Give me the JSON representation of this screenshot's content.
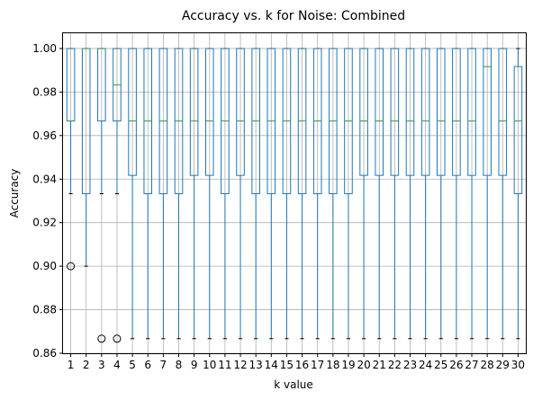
{
  "chart_data": {
    "type": "boxplot",
    "title": "Accuracy vs. k for Noise: Combined",
    "xlabel": "k value",
    "ylabel": "Accuracy",
    "ylim": [
      0.86,
      1.007
    ],
    "yticks": [
      0.86,
      0.88,
      0.9,
      0.92,
      0.94,
      0.96,
      0.98,
      1.0
    ],
    "ytick_labels": [
      "0.86",
      "0.88",
      "0.90",
      "0.92",
      "0.94",
      "0.96",
      "0.98",
      "1.00"
    ],
    "grid": true,
    "colors": {
      "box": "#1f77b4",
      "median": "#2ca02c",
      "whisker": "#1f77b4",
      "cap": "#000000",
      "flier": "#000000",
      "grid": "#b0b0b0"
    },
    "boxes": [
      {
        "k": "1",
        "lower_whisker": 0.9333,
        "q1": 0.9667,
        "median": 0.9667,
        "q3": 1.0,
        "upper_whisker": 1.0,
        "fliers": [
          0.9
        ]
      },
      {
        "k": "2",
        "lower_whisker": 0.9,
        "q1": 0.9333,
        "median": 1.0,
        "q3": 1.0,
        "upper_whisker": 1.0,
        "fliers": []
      },
      {
        "k": "3",
        "lower_whisker": 0.9333,
        "q1": 0.9667,
        "median": 1.0,
        "q3": 1.0,
        "upper_whisker": 1.0,
        "fliers": [
          0.8667
        ]
      },
      {
        "k": "4",
        "lower_whisker": 0.9333,
        "q1": 0.9667,
        "median": 0.9833,
        "q3": 1.0,
        "upper_whisker": 1.0,
        "fliers": [
          0.8667
        ]
      },
      {
        "k": "5",
        "lower_whisker": 0.8667,
        "q1": 0.9417,
        "median": 0.9667,
        "q3": 1.0,
        "upper_whisker": 1.0,
        "fliers": []
      },
      {
        "k": "6",
        "lower_whisker": 0.8667,
        "q1": 0.9333,
        "median": 0.9667,
        "q3": 1.0,
        "upper_whisker": 1.0,
        "fliers": []
      },
      {
        "k": "7",
        "lower_whisker": 0.8667,
        "q1": 0.9333,
        "median": 0.9667,
        "q3": 1.0,
        "upper_whisker": 1.0,
        "fliers": []
      },
      {
        "k": "8",
        "lower_whisker": 0.8667,
        "q1": 0.9333,
        "median": 0.9667,
        "q3": 1.0,
        "upper_whisker": 1.0,
        "fliers": []
      },
      {
        "k": "9",
        "lower_whisker": 0.8667,
        "q1": 0.9417,
        "median": 0.9667,
        "q3": 1.0,
        "upper_whisker": 1.0,
        "fliers": []
      },
      {
        "k": "10",
        "lower_whisker": 0.8667,
        "q1": 0.9417,
        "median": 0.9667,
        "q3": 1.0,
        "upper_whisker": 1.0,
        "fliers": []
      },
      {
        "k": "11",
        "lower_whisker": 0.8667,
        "q1": 0.9333,
        "median": 0.9667,
        "q3": 1.0,
        "upper_whisker": 1.0,
        "fliers": []
      },
      {
        "k": "12",
        "lower_whisker": 0.8667,
        "q1": 0.9417,
        "median": 0.9667,
        "q3": 1.0,
        "upper_whisker": 1.0,
        "fliers": []
      },
      {
        "k": "13",
        "lower_whisker": 0.8667,
        "q1": 0.9333,
        "median": 0.9667,
        "q3": 1.0,
        "upper_whisker": 1.0,
        "fliers": []
      },
      {
        "k": "14",
        "lower_whisker": 0.8667,
        "q1": 0.9333,
        "median": 0.9667,
        "q3": 1.0,
        "upper_whisker": 1.0,
        "fliers": []
      },
      {
        "k": "15",
        "lower_whisker": 0.8667,
        "q1": 0.9333,
        "median": 0.9667,
        "q3": 1.0,
        "upper_whisker": 1.0,
        "fliers": []
      },
      {
        "k": "16",
        "lower_whisker": 0.8667,
        "q1": 0.9333,
        "median": 0.9667,
        "q3": 1.0,
        "upper_whisker": 1.0,
        "fliers": []
      },
      {
        "k": "17",
        "lower_whisker": 0.8667,
        "q1": 0.9333,
        "median": 0.9667,
        "q3": 1.0,
        "upper_whisker": 1.0,
        "fliers": []
      },
      {
        "k": "18",
        "lower_whisker": 0.8667,
        "q1": 0.9333,
        "median": 0.9667,
        "q3": 1.0,
        "upper_whisker": 1.0,
        "fliers": []
      },
      {
        "k": "19",
        "lower_whisker": 0.8667,
        "q1": 0.9333,
        "median": 0.9667,
        "q3": 1.0,
        "upper_whisker": 1.0,
        "fliers": []
      },
      {
        "k": "20",
        "lower_whisker": 0.8667,
        "q1": 0.9417,
        "median": 0.9667,
        "q3": 1.0,
        "upper_whisker": 1.0,
        "fliers": []
      },
      {
        "k": "21",
        "lower_whisker": 0.8667,
        "q1": 0.9417,
        "median": 0.9667,
        "q3": 1.0,
        "upper_whisker": 1.0,
        "fliers": []
      },
      {
        "k": "22",
        "lower_whisker": 0.8667,
        "q1": 0.9417,
        "median": 0.9667,
        "q3": 1.0,
        "upper_whisker": 1.0,
        "fliers": []
      },
      {
        "k": "23",
        "lower_whisker": 0.8667,
        "q1": 0.9417,
        "median": 0.9667,
        "q3": 1.0,
        "upper_whisker": 1.0,
        "fliers": []
      },
      {
        "k": "24",
        "lower_whisker": 0.8667,
        "q1": 0.9417,
        "median": 0.9667,
        "q3": 1.0,
        "upper_whisker": 1.0,
        "fliers": []
      },
      {
        "k": "25",
        "lower_whisker": 0.8667,
        "q1": 0.9417,
        "median": 0.9667,
        "q3": 1.0,
        "upper_whisker": 1.0,
        "fliers": []
      },
      {
        "k": "26",
        "lower_whisker": 0.8667,
        "q1": 0.9417,
        "median": 0.9667,
        "q3": 1.0,
        "upper_whisker": 1.0,
        "fliers": []
      },
      {
        "k": "27",
        "lower_whisker": 0.8667,
        "q1": 0.9417,
        "median": 0.9667,
        "q3": 1.0,
        "upper_whisker": 1.0,
        "fliers": []
      },
      {
        "k": "28",
        "lower_whisker": 0.8667,
        "q1": 0.9417,
        "median": 0.9917,
        "q3": 1.0,
        "upper_whisker": 1.0,
        "fliers": []
      },
      {
        "k": "29",
        "lower_whisker": 0.8667,
        "q1": 0.9417,
        "median": 0.9667,
        "q3": 1.0,
        "upper_whisker": 1.0,
        "fliers": []
      },
      {
        "k": "30",
        "lower_whisker": 0.8667,
        "q1": 0.9333,
        "median": 0.9667,
        "q3": 0.9917,
        "upper_whisker": 1.0,
        "fliers": []
      }
    ]
  }
}
